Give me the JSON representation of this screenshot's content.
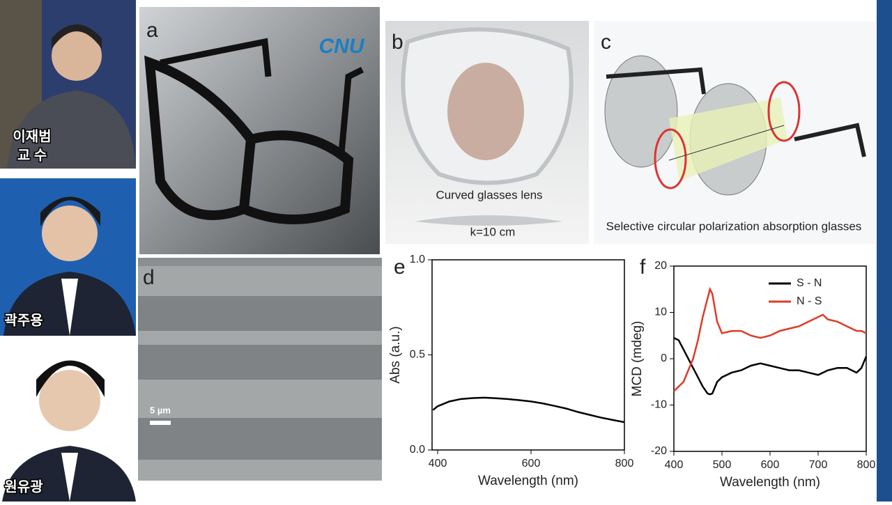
{
  "people": [
    {
      "name": "이재범",
      "title": "교 수"
    },
    {
      "name": "곽주용"
    },
    {
      "name": "원유광"
    }
  ],
  "panels": {
    "a": {
      "label": "a",
      "logo": "CNU"
    },
    "b": {
      "label": "b",
      "caption": "Curved glasses lens",
      "curvature": "k=10 cm"
    },
    "c": {
      "label": "c",
      "caption": "Selective circular polarization absorption glasses"
    },
    "d": {
      "label": "d",
      "scale": "5 µm"
    }
  },
  "chart_data": [
    {
      "type": "line",
      "panel": "e",
      "xlabel": "Wavelength (nm)",
      "ylabel": "Abs (a.u.)",
      "color": "#000000",
      "x": [
        390,
        400,
        425,
        450,
        475,
        500,
        525,
        550,
        575,
        600,
        625,
        650,
        675,
        700,
        725,
        750,
        775,
        800
      ],
      "values": [
        0.21,
        0.23,
        0.255,
        0.268,
        0.273,
        0.275,
        0.272,
        0.268,
        0.262,
        0.255,
        0.245,
        0.232,
        0.218,
        0.2,
        0.185,
        0.17,
        0.158,
        0.146
      ],
      "xlim": [
        388,
        800
      ],
      "ylim": [
        0,
        1
      ],
      "xticks": [
        400,
        600,
        800
      ],
      "yticks": [
        {
          "value": 0,
          "label": "0.0"
        },
        {
          "value": 0.5,
          "label": "0.5"
        },
        {
          "value": 1,
          "label": "1.0"
        }
      ]
    },
    {
      "type": "line",
      "panel": "f",
      "xlabel": "Wavelength (nm)",
      "ylabel": "MCD (mdeg)",
      "x": [
        400,
        410,
        420,
        440,
        450,
        460,
        470,
        475,
        480,
        490,
        500,
        520,
        540,
        560,
        580,
        600,
        620,
        640,
        660,
        680,
        700,
        710,
        720,
        740,
        760,
        780,
        790,
        800
      ],
      "series": [
        {
          "name": "S - N",
          "color": "#000000",
          "values": [
            4.5,
            4,
            2,
            -2,
            -4,
            -6,
            -7.5,
            -7.7,
            -7.5,
            -5,
            -4,
            -3,
            -2.5,
            -1.5,
            -1,
            -1.5,
            -2,
            -2.5,
            -2.5,
            -3,
            -3.5,
            -3,
            -2.5,
            -2,
            -2,
            -3,
            -2,
            0.5
          ]
        },
        {
          "name": "N - S",
          "color": "#e03a25",
          "values": [
            -7,
            -6,
            -5,
            0,
            4,
            9,
            13,
            15,
            14,
            8,
            5.5,
            6,
            6,
            5,
            4.5,
            5,
            6,
            6.5,
            7,
            8,
            9,
            9.5,
            8.5,
            8,
            7,
            6,
            6,
            5.5
          ]
        }
      ],
      "xlim": [
        400,
        800
      ],
      "ylim": [
        -20,
        20
      ],
      "xticks": [
        400,
        500,
        600,
        700,
        800
      ],
      "yticks": [
        -20,
        -10,
        0,
        10,
        20
      ],
      "legend": "upper right"
    }
  ]
}
